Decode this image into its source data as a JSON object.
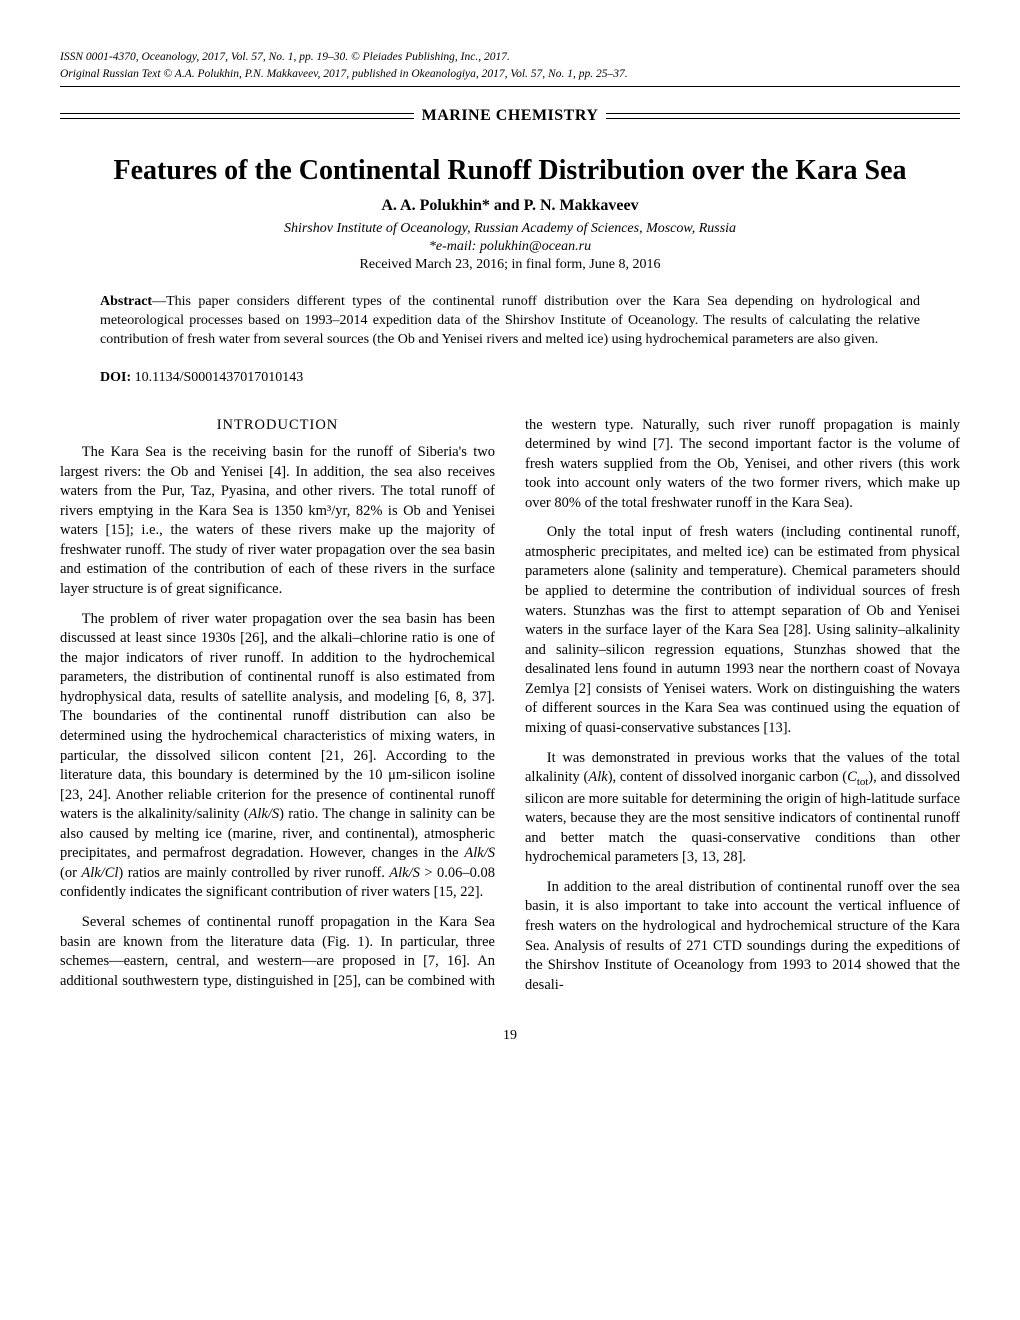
{
  "header": {
    "issn_line1": "ISSN 0001-4370, Oceanology, 2017, Vol. 57, No. 1, pp. 19–30. © Pleiades Publishing, Inc., 2017.",
    "issn_line2": "Original Russian Text © A.A. Polukhin, P.N. Makkaveev, 2017, published in Okeanologiya, 2017, Vol. 57, No. 1, pp. 25–37.",
    "section": "MARINE CHEMISTRY"
  },
  "title": "Features of the Continental Runoff Distribution over the Kara Sea",
  "authors": "A. A. Polukhin* and P. N. Makkaveev",
  "affiliation": "Shirshov Institute of Oceanology, Russian Academy of Sciences, Moscow, Russia",
  "email": "*e-mail: polukhin@ocean.ru",
  "received": "Received March 23, 2016; in final form, June 8, 2016",
  "abstract_label": "Abstract",
  "abstract_text": "—This paper considers different types of the continental runoff distribution over the Kara Sea depending on hydrological and meteorological processes based on 1993–2014 expedition data of the Shirshov Institute of Oceanology. The results of calculating the relative contribution of fresh water from several sources (the Ob and Yenisei rivers and melted ice) using hydrochemical parameters are also given.",
  "doi_label": "DOI:",
  "doi_value": "10.1134/S0001437017010143",
  "intro_heading": "INTRODUCTION",
  "body": {
    "p1": "The Kara Sea is the receiving basin for the runoff of Siberia's two largest rivers: the Ob and Yenisei [4]. In addition, the sea also receives waters from the Pur, Taz, Pyasina, and other rivers. The total runoff of rivers emptying in the Kara Sea is 1350 km³/yr, 82% is Ob and Yenisei waters [15]; i.e., the waters of these rivers make up the majority of freshwater runoff. The study of river water propagation over the sea basin and estimation of the contribution of each of these rivers in the surface layer structure is of great significance.",
    "p2a": "The problem of river water propagation over the sea basin has been discussed at least since 1930s [26], and the alkali–chlorine ratio is one of the major indicators of river runoff. In addition to the hydrochemical parameters, the distribution of continental runoff is also estimated from hydrophysical data, results of satellite analysis, and modeling [6, 8, 37]. The boundaries of the continental runoff distribution can also be determined using the hydrochemical characteristics of mixing waters, in particular, the dissolved silicon content [21, 26]. According to the literature data, this boundary is determined by the 10 μm-silicon isoline [23, 24]. Another reliable criterion for the presence of continental runoff waters is the alkalinity/salinity (",
    "p2b": ") ratio. The change in salinity can be also caused by melting ice (marine, river, and continental), atmospheric precipitates, and permafrost degradation. However, changes in the ",
    "p2c": " (or ",
    "p2d": ") ratios are mainly controlled by river runoff. ",
    "p2e": " > 0.06–0.08 confidently indicates the significant contribution of river waters [15, 22].",
    "p3": "Several schemes of continental runoff propagation in the Kara Sea basin are known from the literature data (Fig. 1). In particular, three schemes—eastern, central, and western—are proposed in [7, 16]. An additional southwestern type, distinguished in [25], can be combined with the western type. Naturally, such river runoff propagation is mainly determined by wind [7]. The second important factor is the volume of fresh waters supplied from the Ob, Yenisei, and other rivers (this work took into account only waters of the two former rivers, which make up over 80% of the total freshwater runoff in the Kara Sea).",
    "p4": "Only the total input of fresh waters (including continental runoff, atmospheric precipitates, and melted ice) can be estimated from physical parameters alone (salinity and temperature). Chemical parameters should be applied to determine the contribution of individual sources of fresh waters. Stunzhas was the first to attempt separation of Ob and Yenisei waters in the surface layer of the Kara Sea [28]. Using salinity–alkalinity and salinity–silicon regression equations, Stunzhas showed that the desalinated lens found in autumn 1993 near the northern coast of Novaya Zemlya [2] consists of Yenisei waters. Work on distinguishing the waters of different sources in the Kara Sea was continued using the equation of mixing of quasi-conservative substances [13].",
    "p5a": "It was demonstrated in previous works that the values of the total alkalinity (",
    "p5b": "), content of dissolved inorganic carbon (",
    "p5c": "), and dissolved silicon are more suitable for determining the origin of high-latitude surface waters, because they are the most sensitive indicators of continental runoff and better match the quasi-conservative conditions than other hydrochemical parameters [3, 13, 28].",
    "p6": "In addition to the areal distribution of continental runoff over the sea basin, it is also important to take into account the vertical influence of fresh waters on the hydrological and hydrochemical structure of the Kara Sea. Analysis of results of 271 CTD soundings during the expeditions of the Shirshov Institute of Oceanology from 1993 to 2014 showed that the desali-"
  },
  "italic": {
    "alks": "Alk/S",
    "alkcl": "Alk/Cl",
    "alk": "Alk",
    "ctot": "C",
    "ctotsub": "tot"
  },
  "pagenum": "19"
}
